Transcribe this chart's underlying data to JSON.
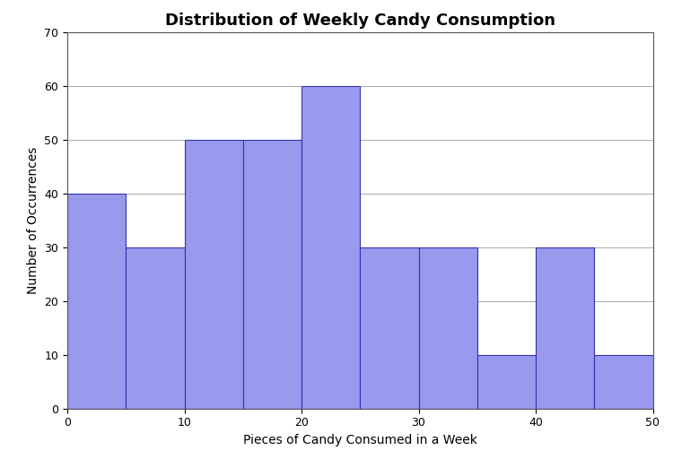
{
  "title": "Distribution of Weekly Candy Consumption",
  "xlabel": "Pieces of Candy Consumed in a Week",
  "ylabel": "Number of Occurrences",
  "bin_edges": [
    0,
    5,
    10,
    15,
    20,
    25,
    30,
    35,
    40,
    45,
    50
  ],
  "counts": [
    40,
    30,
    50,
    50,
    60,
    30,
    30,
    10,
    30,
    10
  ],
  "bar_color": "#9999ee",
  "bar_edgecolor": "#3333aa",
  "ylim": [
    0,
    70
  ],
  "xlim": [
    0,
    50
  ],
  "yticks": [
    0,
    10,
    20,
    30,
    40,
    50,
    60,
    70
  ],
  "xticks": [
    0,
    10,
    20,
    30,
    40,
    50
  ],
  "grid_color": "#aaaaaa",
  "background_color": "#ffffff",
  "title_fontsize": 13,
  "axis_label_fontsize": 10,
  "tick_fontsize": 9,
  "figsize": [
    7.5,
    5.12
  ],
  "dpi": 100
}
